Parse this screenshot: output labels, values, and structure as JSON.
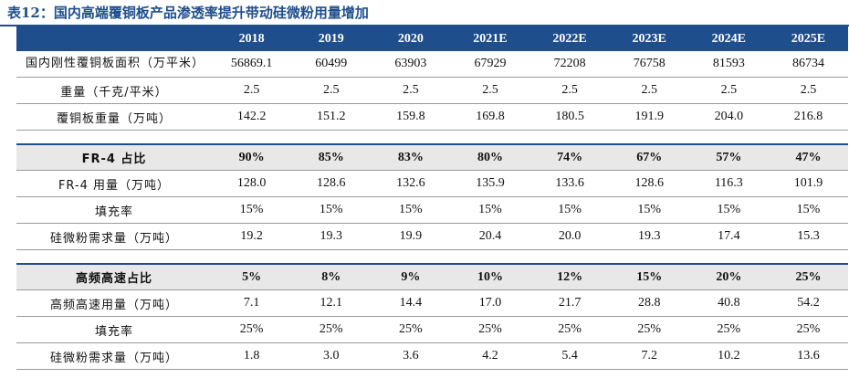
{
  "title": "表12：国内高端覆铜板产品渗透率提升带动硅微粉用量增加",
  "header": [
    "2018",
    "2019",
    "2020",
    "2021E",
    "2022E",
    "2023E",
    "2024E",
    "2025E"
  ],
  "rows": [
    {
      "label": "国内刚性覆铜板面积（万平米）",
      "values": [
        "56869.1",
        "60499",
        "63903",
        "67929",
        "72208",
        "76758",
        "81593",
        "86734"
      ]
    },
    {
      "label": "重量（千克/平米）",
      "values": [
        "2.5",
        "2.5",
        "2.5",
        "2.5",
        "2.5",
        "2.5",
        "2.5",
        "2.5"
      ]
    },
    {
      "label": "覆铜板重量（万吨）",
      "values": [
        "142.2",
        "151.2",
        "159.8",
        "169.8",
        "180.5",
        "191.9",
        "204.0",
        "216.8"
      ]
    },
    {
      "label": "FR-4 占比",
      "values": [
        "90%",
        "85%",
        "83%",
        "80%",
        "74%",
        "67%",
        "57%",
        "47%"
      ]
    },
    {
      "label": "FR-4 用量（万吨）",
      "values": [
        "128.0",
        "128.6",
        "132.6",
        "135.9",
        "133.6",
        "128.6",
        "116.3",
        "101.9"
      ]
    },
    {
      "label": "填充率",
      "values": [
        "15%",
        "15%",
        "15%",
        "15%",
        "15%",
        "15%",
        "15%",
        "15%"
      ]
    },
    {
      "label": "硅微粉需求量（万吨）",
      "values": [
        "19.2",
        "19.3",
        "19.9",
        "20.4",
        "20.0",
        "19.3",
        "17.4",
        "15.3"
      ]
    },
    {
      "label": "高频高速占比",
      "values": [
        "5%",
        "8%",
        "9%",
        "10%",
        "12%",
        "15%",
        "20%",
        "25%"
      ]
    },
    {
      "label": "高频高速用量（万吨）",
      "values": [
        "7.1",
        "12.1",
        "14.4",
        "17.0",
        "21.7",
        "28.8",
        "40.8",
        "54.2"
      ]
    },
    {
      "label": "填充率",
      "values": [
        "25%",
        "25%",
        "25%",
        "25%",
        "25%",
        "25%",
        "25%",
        "25%"
      ]
    },
    {
      "label": "硅微粉需求量（万吨）",
      "values": [
        "1.8",
        "3.0",
        "3.6",
        "4.2",
        "5.4",
        "7.2",
        "10.2",
        "13.6"
      ]
    }
  ]
}
